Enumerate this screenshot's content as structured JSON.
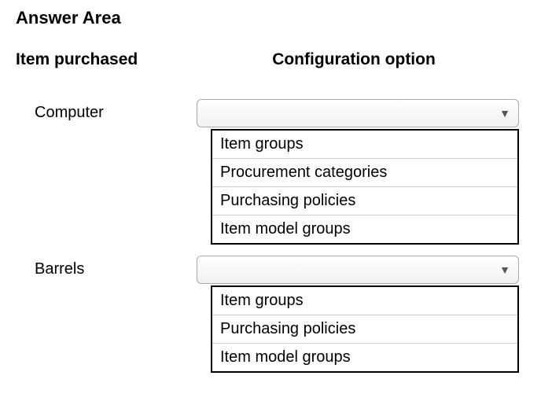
{
  "page_title": "Answer Area",
  "headers": {
    "left": "Item purchased",
    "right": "Configuration option"
  },
  "rows": [
    {
      "item_label": "Computer",
      "options": [
        "Item groups",
        "Procurement categories",
        "Purchasing policies",
        "Item model groups"
      ]
    },
    {
      "item_label": "Barrels",
      "options": [
        "Item groups",
        "Purchasing policies",
        "Item model groups"
      ]
    }
  ],
  "colors": {
    "background": "#ffffff",
    "text": "#000000",
    "select_border": "#aaaaaa",
    "select_gradient_top": "#ffffff",
    "select_gradient_bottom": "#f1f1f1",
    "option_border": "#cccccc",
    "options_box_border": "#000000",
    "arrow": "#555555"
  }
}
